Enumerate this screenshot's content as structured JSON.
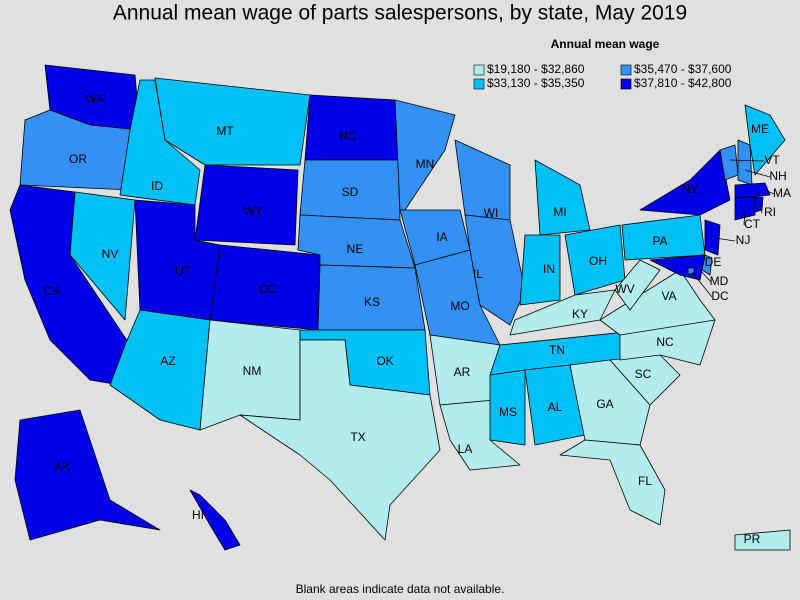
{
  "title": "Annual mean wage of parts salespersons, by state, May 2019",
  "legend": {
    "title": "Annual mean wage",
    "items": [
      {
        "label": "$19,180 - $32,860",
        "color": "#b2ecee"
      },
      {
        "label": "$33,130 - $35,350",
        "color": "#00c0f4"
      },
      {
        "label": "$35,470 - $37,600",
        "color": "#3291f3"
      },
      {
        "label": "$37,810 - $42,800",
        "color": "#0000e6"
      }
    ]
  },
  "states": [
    {
      "abbr": "WA",
      "class": 3
    },
    {
      "abbr": "OR",
      "class": 2
    },
    {
      "abbr": "CA",
      "class": 3
    },
    {
      "abbr": "NV",
      "class": 1
    },
    {
      "abbr": "ID",
      "class": 1
    },
    {
      "abbr": "MT",
      "class": 1
    },
    {
      "abbr": "WY",
      "class": 3
    },
    {
      "abbr": "UT",
      "class": 3
    },
    {
      "abbr": "CO",
      "class": 3
    },
    {
      "abbr": "AZ",
      "class": 1
    },
    {
      "abbr": "NM",
      "class": 0
    },
    {
      "abbr": "ND",
      "class": 3
    },
    {
      "abbr": "SD",
      "class": 2
    },
    {
      "abbr": "NE",
      "class": 2
    },
    {
      "abbr": "KS",
      "class": 2
    },
    {
      "abbr": "OK",
      "class": 1
    },
    {
      "abbr": "TX",
      "class": 0
    },
    {
      "abbr": "MN",
      "class": 2
    },
    {
      "abbr": "IA",
      "class": 2
    },
    {
      "abbr": "MO",
      "class": 2
    },
    {
      "abbr": "AR",
      "class": 0
    },
    {
      "abbr": "LA",
      "class": 0
    },
    {
      "abbr": "WI",
      "class": 2
    },
    {
      "abbr": "IL",
      "class": 2
    },
    {
      "abbr": "MI",
      "class": 1
    },
    {
      "abbr": "IN",
      "class": 1
    },
    {
      "abbr": "OH",
      "class": 1
    },
    {
      "abbr": "KY",
      "class": 0
    },
    {
      "abbr": "TN",
      "class": 1
    },
    {
      "abbr": "MS",
      "class": 1
    },
    {
      "abbr": "AL",
      "class": 1
    },
    {
      "abbr": "GA",
      "class": 0
    },
    {
      "abbr": "FL",
      "class": 0
    },
    {
      "abbr": "SC",
      "class": 0
    },
    {
      "abbr": "NC",
      "class": 0
    },
    {
      "abbr": "VA",
      "class": 0
    },
    {
      "abbr": "WV",
      "class": 0
    },
    {
      "abbr": "PA",
      "class": 1
    },
    {
      "abbr": "NY",
      "class": 3
    },
    {
      "abbr": "VT",
      "class": 2
    },
    {
      "abbr": "NH",
      "class": 2
    },
    {
      "abbr": "ME",
      "class": 1
    },
    {
      "abbr": "MA",
      "class": 3
    },
    {
      "abbr": "CT",
      "class": 3
    },
    {
      "abbr": "RI",
      "class": 3
    },
    {
      "abbr": "NJ",
      "class": 3
    },
    {
      "abbr": "DE",
      "class": 2
    },
    {
      "abbr": "MD",
      "class": 3
    },
    {
      "abbr": "DC",
      "class": 2
    },
    {
      "abbr": "AK",
      "class": 3
    },
    {
      "abbr": "HI",
      "class": 3
    },
    {
      "abbr": "PR",
      "class": 0
    }
  ],
  "note": "Blank areas indicate data not available."
}
